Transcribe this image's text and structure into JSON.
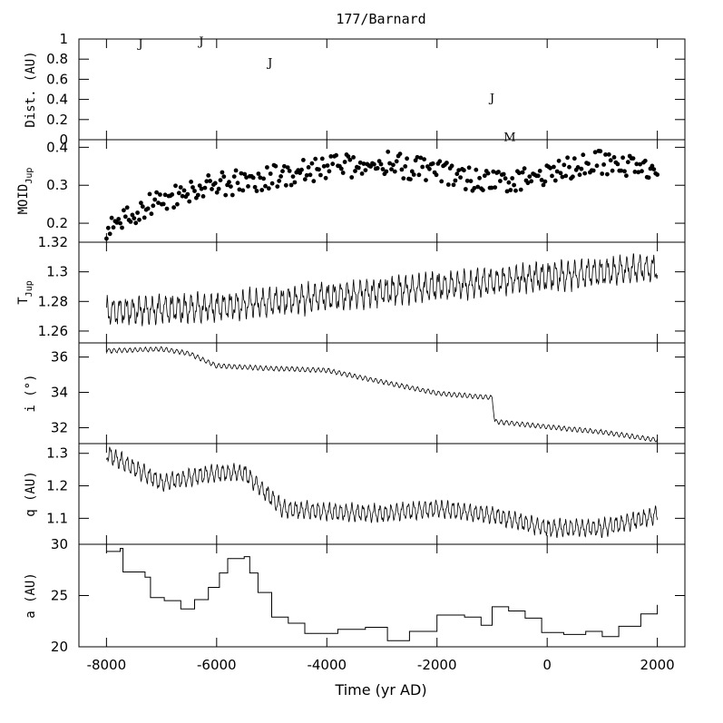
{
  "chart_data": {
    "title": "177/Barnard",
    "xlabel": "Time (yr AD)",
    "x_ticks": [
      -8000,
      -6000,
      -4000,
      -2000,
      0,
      2000
    ],
    "x_tick_labels": [
      "-8000",
      "-6000",
      "-4000",
      "-2000",
      "0",
      "2000"
    ],
    "xlim": [
      -8500,
      2500
    ],
    "panels": [
      {
        "id": "dist",
        "type": "scatter",
        "ylabel": "Dist. (AU)",
        "ylim": [
          0,
          1
        ],
        "y_ticks": [
          0,
          0.2,
          0.4,
          0.6,
          0.8,
          1
        ],
        "y_tick_labels": [
          "0",
          "0.2",
          "0.4",
          "0.6",
          "0.8",
          "1"
        ],
        "encounters": [
          {
            "x": -7380,
            "y": 0.96,
            "label": "J"
          },
          {
            "x": -6280,
            "y": 0.98,
            "label": "J"
          },
          {
            "x": -5030,
            "y": 0.77,
            "label": "J"
          },
          {
            "x": -1000,
            "y": 0.42,
            "label": "J"
          },
          {
            "x": -680,
            "y": 0.03,
            "label": "M"
          }
        ]
      },
      {
        "id": "moid",
        "type": "scatter",
        "ylabel_main": "MOID",
        "ylabel_sub": "Jup",
        "ylim": [
          0.15,
          0.42
        ],
        "y_ticks": [
          0.2,
          0.3,
          0.4
        ],
        "y_tick_labels": [
          "0.2",
          "0.3",
          "0.4"
        ],
        "trend": [
          {
            "x": -8000,
            "y": 0.19
          },
          {
            "x": -7500,
            "y": 0.22
          },
          {
            "x": -7000,
            "y": 0.265
          },
          {
            "x": -6000,
            "y": 0.3
          },
          {
            "x": -5000,
            "y": 0.32
          },
          {
            "x": -4000,
            "y": 0.345
          },
          {
            "x": -3000,
            "y": 0.36
          },
          {
            "x": -2000,
            "y": 0.335
          },
          {
            "x": -1000,
            "y": 0.305
          },
          {
            "x": 0,
            "y": 0.33
          },
          {
            "x": 1000,
            "y": 0.36
          },
          {
            "x": 2000,
            "y": 0.35
          }
        ]
      },
      {
        "id": "tjup",
        "type": "line",
        "ylabel_main": "T",
        "ylabel_sub": "Jup",
        "ylim": [
          1.252,
          1.32
        ],
        "y_ticks": [
          1.26,
          1.28,
          1.3,
          1.32
        ],
        "y_tick_labels": [
          "1.26",
          "1.28",
          "1.3",
          "1.32"
        ],
        "trend": [
          {
            "x": -8000,
            "y": 1.273
          },
          {
            "x": -6000,
            "y": 1.276
          },
          {
            "x": -4000,
            "y": 1.283
          },
          {
            "x": -2000,
            "y": 1.29
          },
          {
            "x": 0,
            "y": 1.297
          },
          {
            "x": 2000,
            "y": 1.303
          }
        ],
        "amplitude": 0.009
      },
      {
        "id": "incl",
        "type": "line",
        "ylabel": "i (°)",
        "ylim": [
          31.1,
          36.8
        ],
        "y_ticks": [
          32,
          34,
          36
        ],
        "y_tick_labels": [
          "32",
          "34",
          "36"
        ],
        "trend": [
          {
            "x": -8000,
            "y": 36.35
          },
          {
            "x": -7000,
            "y": 36.45
          },
          {
            "x": -6500,
            "y": 36.2
          },
          {
            "x": -6000,
            "y": 35.5
          },
          {
            "x": -5000,
            "y": 35.35
          },
          {
            "x": -4000,
            "y": 35.25
          },
          {
            "x": -3000,
            "y": 34.6
          },
          {
            "x": -2000,
            "y": 33.95
          },
          {
            "x": -1000,
            "y": 33.7
          },
          {
            "x": -950,
            "y": 32.35
          },
          {
            "x": 0,
            "y": 32.05
          },
          {
            "x": 1000,
            "y": 31.75
          },
          {
            "x": 2000,
            "y": 31.3
          }
        ],
        "amplitude": 0.12
      },
      {
        "id": "q",
        "type": "line",
        "ylabel": "q (AU)",
        "ylim": [
          1.02,
          1.33
        ],
        "y_ticks": [
          1.1,
          1.2,
          1.3
        ],
        "y_tick_labels": [
          "1.1",
          "1.2",
          "1.3"
        ],
        "trend": [
          {
            "x": -8000,
            "y": 1.3
          },
          {
            "x": -7000,
            "y": 1.21
          },
          {
            "x": -6000,
            "y": 1.24
          },
          {
            "x": -5500,
            "y": 1.24
          },
          {
            "x": -4800,
            "y": 1.13
          },
          {
            "x": -4000,
            "y": 1.12
          },
          {
            "x": -3000,
            "y": 1.115
          },
          {
            "x": -2000,
            "y": 1.13
          },
          {
            "x": -1000,
            "y": 1.11
          },
          {
            "x": 0,
            "y": 1.07
          },
          {
            "x": 1000,
            "y": 1.07
          },
          {
            "x": 2000,
            "y": 1.11
          }
        ],
        "amplitude": 0.022
      },
      {
        "id": "a",
        "type": "line",
        "ylabel": "a (AU)",
        "ylim": [
          20,
          30
        ],
        "y_ticks": [
          20,
          25,
          30
        ],
        "y_tick_labels": [
          "20",
          "25",
          "30"
        ],
        "steps": [
          {
            "x": -8000,
            "y": 29.3
          },
          {
            "x": -7750,
            "y": 29.6
          },
          {
            "x": -7700,
            "y": 27.3
          },
          {
            "x": -7300,
            "y": 26.8
          },
          {
            "x": -7200,
            "y": 24.8
          },
          {
            "x": -6950,
            "y": 24.5
          },
          {
            "x": -6650,
            "y": 23.7
          },
          {
            "x": -6400,
            "y": 24.6
          },
          {
            "x": -6150,
            "y": 25.8
          },
          {
            "x": -5950,
            "y": 27.2
          },
          {
            "x": -5800,
            "y": 28.6
          },
          {
            "x": -5500,
            "y": 28.8
          },
          {
            "x": -5400,
            "y": 27.2
          },
          {
            "x": -5250,
            "y": 25.3
          },
          {
            "x": -5000,
            "y": 22.9
          },
          {
            "x": -4700,
            "y": 22.3
          },
          {
            "x": -4400,
            "y": 21.3
          },
          {
            "x": -3800,
            "y": 21.7
          },
          {
            "x": -3300,
            "y": 21.9
          },
          {
            "x": -2900,
            "y": 20.6
          },
          {
            "x": -2500,
            "y": 21.5
          },
          {
            "x": -2000,
            "y": 23.1
          },
          {
            "x": -1500,
            "y": 22.9
          },
          {
            "x": -1200,
            "y": 22.1
          },
          {
            "x": -1000,
            "y": 23.9
          },
          {
            "x": -700,
            "y": 23.5
          },
          {
            "x": -400,
            "y": 22.8
          },
          {
            "x": -100,
            "y": 21.4
          },
          {
            "x": 300,
            "y": 21.2
          },
          {
            "x": 700,
            "y": 21.5
          },
          {
            "x": 1000,
            "y": 21.0
          },
          {
            "x": 1300,
            "y": 22.0
          },
          {
            "x": 1700,
            "y": 23.2
          },
          {
            "x": 2000,
            "y": 24.1
          }
        ]
      }
    ]
  }
}
